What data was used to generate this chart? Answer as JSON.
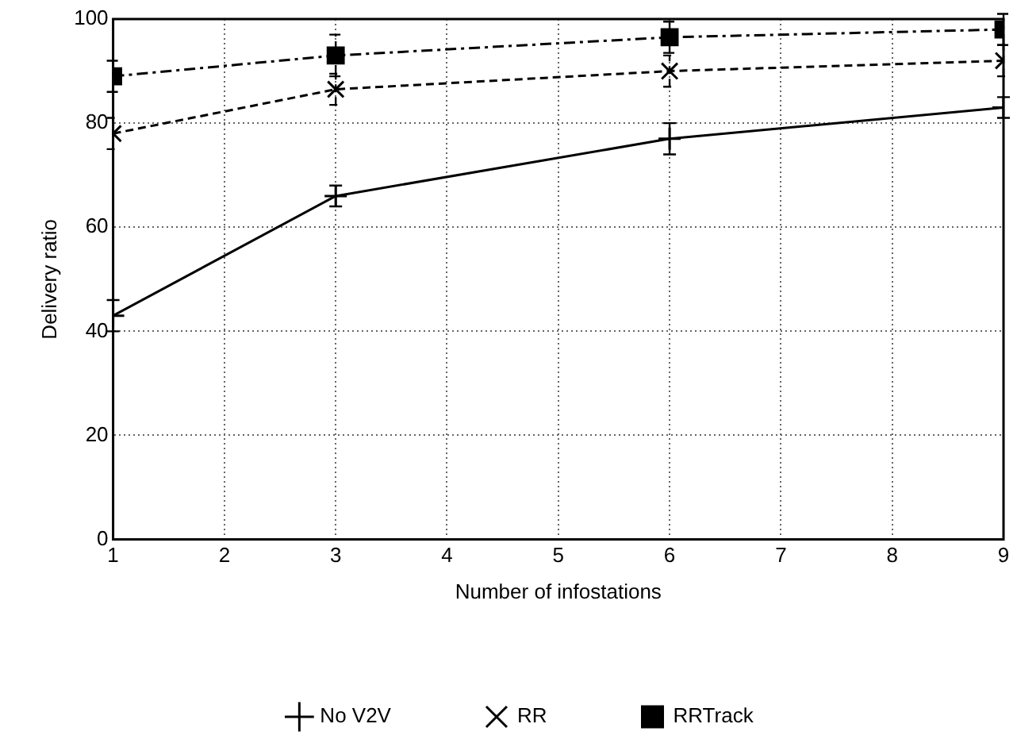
{
  "chart_data": {
    "type": "line",
    "xlabel": "Number of infostations",
    "ylabel": "Delivery ratio",
    "x": [
      1,
      3,
      6,
      9
    ],
    "xlim": [
      1,
      9
    ],
    "xticks": [
      1,
      2,
      3,
      4,
      5,
      6,
      7,
      8,
      9
    ],
    "ylim": [
      0,
      100
    ],
    "yticks": [
      0,
      20,
      40,
      60,
      80,
      100
    ],
    "grid": true,
    "legend": "bottom",
    "series": [
      {
        "name": "No V2V",
        "color": "#000000",
        "values": [
          43,
          66,
          77,
          83
        ],
        "errors": [
          3,
          2,
          3,
          2
        ],
        "marker": "cross",
        "line_style": "solid"
      },
      {
        "name": "RR",
        "color": "#000000",
        "values": [
          78,
          86.5,
          90,
          92
        ],
        "errors": [
          3,
          3,
          3,
          3
        ],
        "marker": "x",
        "line_style": "dashed"
      },
      {
        "name": "RRTrack",
        "color": "#000000",
        "values": [
          89,
          93,
          96.5,
          98
        ],
        "errors": [
          3,
          4,
          3,
          3
        ],
        "marker": "square",
        "line_style": "dashdot"
      }
    ]
  }
}
